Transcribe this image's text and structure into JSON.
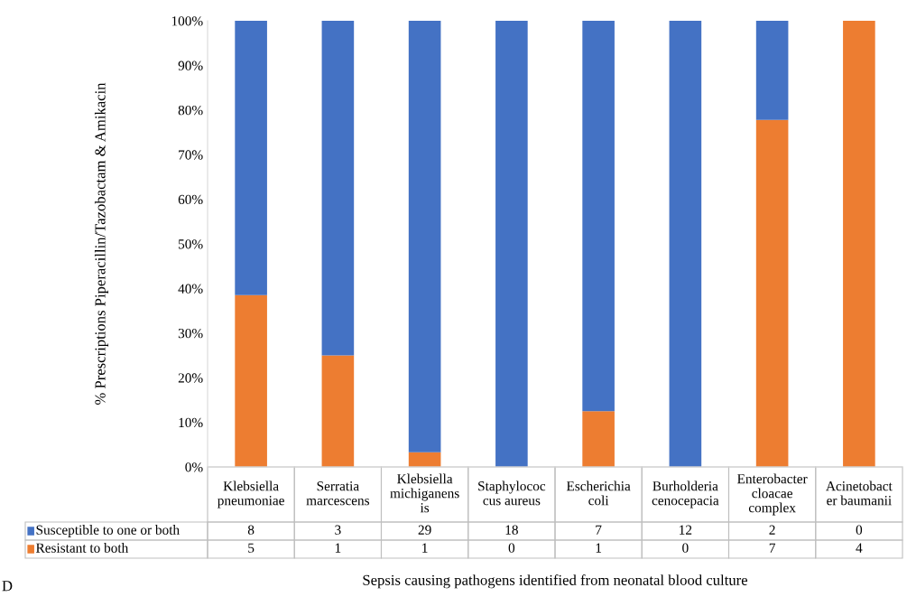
{
  "chart_data": [
    {
      "type": "bar",
      "stacked": true,
      "xlabel": "Sepsis causing pathogens identified from neonatal blood culture",
      "ylabel": "% Prescriptions Piperacillin/Tazobactam & Amikacin",
      "categories": [
        "Klebsiella\npneumoniae",
        "Serratia\nmarcescens",
        "Klebsiella\nmichiganens\nis",
        "Staphylococ\ncus aureus",
        "Escherichia\ncoli",
        "Burholderia\ncenocepacia",
        "Enterobacter\ncloacae\ncomplex",
        "Acinetobact\ner baumanii"
      ],
      "series": [
        {
          "name": "Resistant to both",
          "color": "#ed7d31",
          "values": [
            38.5,
            25,
            3.3,
            0,
            12.5,
            0,
            77.8,
            100
          ]
        },
        {
          "name": "Susceptible to one or both",
          "color": "#4472c4",
          "values": [
            61.5,
            75,
            96.7,
            100,
            87.5,
            100,
            22.2,
            0
          ]
        }
      ],
      "ylim": [
        0,
        100
      ],
      "yticks": [
        {
          "value": 0,
          "label": "0%"
        },
        {
          "value": 10,
          "label": "10%"
        },
        {
          "value": 20,
          "label": "20%"
        },
        {
          "value": 30,
          "label": "30%"
        },
        {
          "value": 40,
          "label": "40%"
        },
        {
          "value": 50,
          "label": "50%"
        },
        {
          "value": 60,
          "label": "60%"
        },
        {
          "value": 70,
          "label": "70%"
        },
        {
          "value": 80,
          "label": "80%"
        },
        {
          "value": 90,
          "label": "90%"
        },
        {
          "value": 100,
          "label": "100%"
        }
      ],
      "legend": "bottom",
      "grid": false,
      "annotations": [
        "D"
      ]
    },
    {
      "type": "other",
      "annotations": [
        "8",
        "3",
        "29",
        "18",
        "7",
        "12",
        "2",
        "0",
        "5",
        "1",
        "1",
        "0",
        "1",
        "0",
        "7",
        "4"
      ]
    }
  ]
}
